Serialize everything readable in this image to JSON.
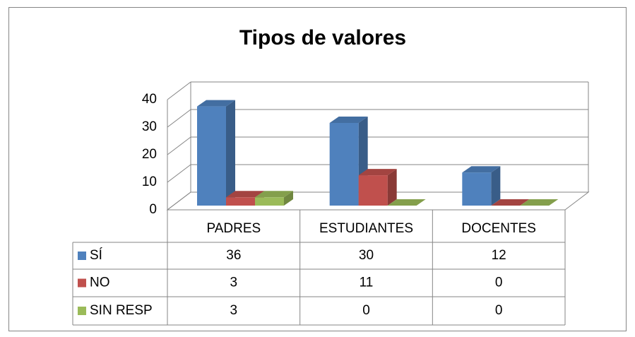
{
  "chart_data": {
    "type": "bar",
    "title": "Tipos de valores",
    "categories": [
      "PADRES",
      "ESTUDIANTES",
      "DOCENTES"
    ],
    "series": [
      {
        "name": "SÍ",
        "color": "#4f81bd",
        "values": [
          36,
          30,
          12
        ]
      },
      {
        "name": "NO",
        "color": "#c0504d",
        "values": [
          3,
          11,
          0
        ]
      },
      {
        "name": "SIN RESP",
        "color": "#9bbb59",
        "values": [
          3,
          0,
          0
        ]
      }
    ],
    "ylim": [
      0,
      40
    ],
    "yticks": [
      0,
      10,
      20,
      30,
      40
    ],
    "grid": true
  }
}
